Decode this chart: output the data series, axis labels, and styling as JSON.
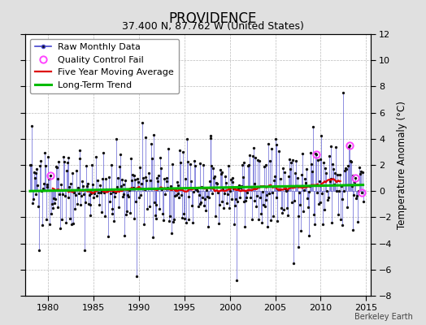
{
  "title": "PROVIDENCE",
  "subtitle": "37.400 N, 87.762 W (United States)",
  "ylabel": "Temperature Anomaly (°C)",
  "watermark": "Berkeley Earth",
  "start_year": 1977.5,
  "end_year": 2015.5,
  "ylim": [
    -8,
    12
  ],
  "yticks": [
    -8,
    -6,
    -4,
    -2,
    0,
    2,
    4,
    6,
    8,
    10,
    12
  ],
  "xticks": [
    1980,
    1985,
    1990,
    1995,
    2000,
    2005,
    2010,
    2015
  ],
  "bg_color": "#e0e0e0",
  "plot_bg_color": "#ffffff",
  "raw_line_color": "#4444cc",
  "raw_dot_color": "#111111",
  "ma_color": "#dd0000",
  "trend_color": "#00bb00",
  "qc_color": "#ff44ff",
  "legend_fontsize": 8,
  "title_fontsize": 12,
  "subtitle_fontsize": 9
}
